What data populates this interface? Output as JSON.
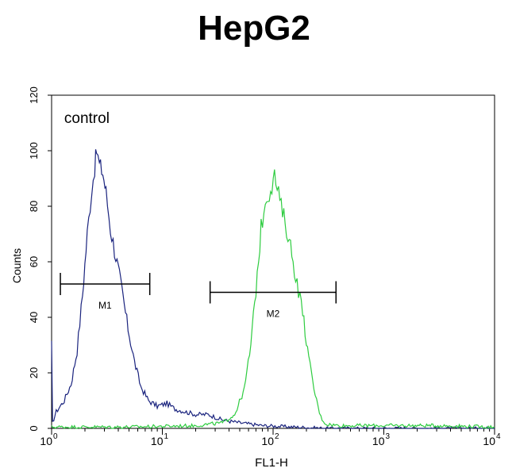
{
  "chart_data": {
    "type": "line",
    "title": "HepG2",
    "xlabel": "FL1-H",
    "ylabel": "Counts",
    "x_scale": "log",
    "xlim": [
      1,
      10000
    ],
    "ylim": [
      0,
      120
    ],
    "x_ticks": [
      {
        "base": "10",
        "exp": "0",
        "value": 1
      },
      {
        "base": "10",
        "exp": "1",
        "value": 10
      },
      {
        "base": "10",
        "exp": "2",
        "value": 100
      },
      {
        "base": "10",
        "exp": "3",
        "value": 1000
      },
      {
        "base": "10",
        "exp": "4",
        "value": 10000
      }
    ],
    "y_ticks": [
      "0",
      "20",
      "40",
      "60",
      "80",
      "100",
      "120"
    ],
    "annotations": [
      {
        "text": "control",
        "x": 1.3,
        "y": 110
      }
    ],
    "series": [
      {
        "color": "#1a237e",
        "points": [
          [
            1.0,
            30
          ],
          [
            1.02,
            2
          ],
          [
            1.1,
            6
          ],
          [
            1.3,
            10
          ],
          [
            1.5,
            16
          ],
          [
            1.7,
            28
          ],
          [
            1.9,
            48
          ],
          [
            2.1,
            70
          ],
          [
            2.3,
            86
          ],
          [
            2.45,
            94
          ],
          [
            2.55,
            100
          ],
          [
            2.7,
            95
          ],
          [
            2.9,
            92
          ],
          [
            3.1,
            85
          ],
          [
            3.4,
            72
          ],
          [
            3.8,
            62
          ],
          [
            4.3,
            50
          ],
          [
            4.9,
            36
          ],
          [
            5.6,
            24
          ],
          [
            6.4,
            15
          ],
          [
            7.5,
            10
          ],
          [
            9,
            8
          ],
          [
            11,
            9
          ],
          [
            13,
            7
          ],
          [
            16,
            6
          ],
          [
            20,
            5
          ],
          [
            26,
            5
          ],
          [
            35,
            3
          ],
          [
            50,
            2
          ],
          [
            80,
            1
          ],
          [
            150,
            0.5
          ],
          [
            300,
            0
          ],
          [
            10000,
            0
          ]
        ]
      },
      {
        "color": "#2ecc40",
        "points": [
          [
            1,
            0.5
          ],
          [
            5,
            0.5
          ],
          [
            20,
            1
          ],
          [
            35,
            2
          ],
          [
            45,
            5
          ],
          [
            55,
            14
          ],
          [
            63,
            30
          ],
          [
            70,
            50
          ],
          [
            78,
            72
          ],
          [
            85,
            82
          ],
          [
            95,
            86
          ],
          [
            103,
            91
          ],
          [
            112,
            84
          ],
          [
            125,
            76
          ],
          [
            140,
            68
          ],
          [
            160,
            55
          ],
          [
            185,
            42
          ],
          [
            210,
            25
          ],
          [
            240,
            12
          ],
          [
            270,
            4
          ],
          [
            300,
            1.5
          ],
          [
            400,
            1
          ],
          [
            1000,
            1
          ],
          [
            3000,
            1
          ],
          [
            10000,
            0.5
          ]
        ]
      }
    ],
    "markers": [
      {
        "label": "M1",
        "x_start": 1.2,
        "x_end": 7.7,
        "y": 52
      },
      {
        "label": "M2",
        "x_start": 27,
        "x_end": 370,
        "y": 49
      }
    ]
  }
}
